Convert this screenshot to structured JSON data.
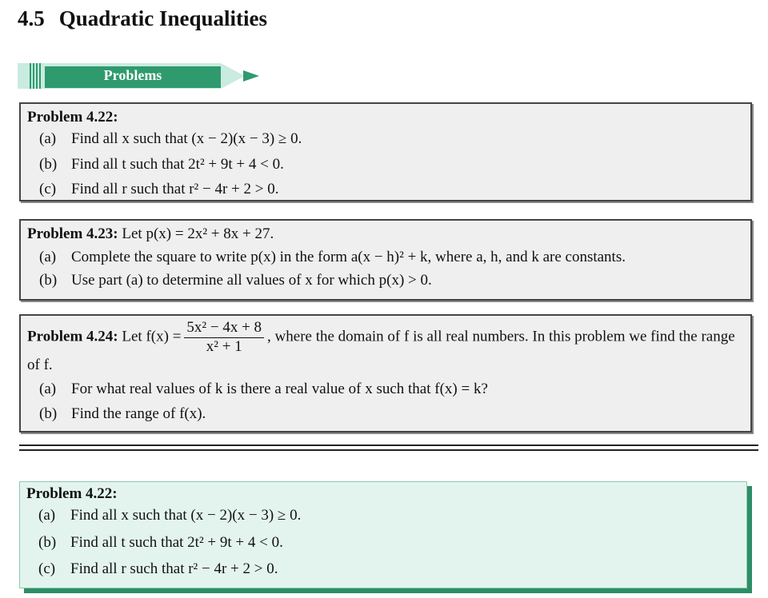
{
  "section": {
    "number": "4.5",
    "title": "Quadratic Inequalities"
  },
  "banner": {
    "label": "Problems",
    "icon": "pencil-icon",
    "color": "#2f9a6e"
  },
  "problems": [
    {
      "heading": "Problem 4.22:",
      "intro": "",
      "parts": [
        {
          "label": "(a)",
          "text": "Find all x such that (x − 2)(x − 3) ≥ 0."
        },
        {
          "label": "(b)",
          "text": "Find all t such that 2t² + 9t + 4 < 0."
        },
        {
          "label": "(c)",
          "text": "Find all r such that r² − 4r + 2 > 0."
        }
      ]
    },
    {
      "heading": "Problem 4.23:",
      "intro": "Let p(x) = 2x² + 8x + 27.",
      "parts": [
        {
          "label": "(a)",
          "text": "Complete the square to write p(x) in the form a(x − h)² + k, where a, h, and k are constants."
        },
        {
          "label": "(b)",
          "text": "Use part (a) to determine all values of x for which p(x) > 0."
        }
      ]
    },
    {
      "heading": "Problem 4.24:",
      "intro_before": "Let f(x) =",
      "fraction": {
        "numerator": "5x² − 4x + 8",
        "denominator": "x² + 1"
      },
      "intro_after": ", where the domain of f is all real numbers. In this problem we find the range of f.",
      "parts": [
        {
          "label": "(a)",
          "text": "For what real values of k is there a real value of x such that f(x) = k?"
        },
        {
          "label": "(b)",
          "text": "Find the range of f(x)."
        }
      ]
    }
  ],
  "highlighted": {
    "heading": "Problem 4.22:",
    "parts": [
      {
        "label": "(a)",
        "text": "Find all x such that (x − 2)(x − 3) ≥ 0."
      },
      {
        "label": "(b)",
        "text": "Find all t such that 2t² + 9t + 4 < 0."
      },
      {
        "label": "(c)",
        "text": "Find all r such that r² − 4r + 2 > 0."
      }
    ]
  }
}
